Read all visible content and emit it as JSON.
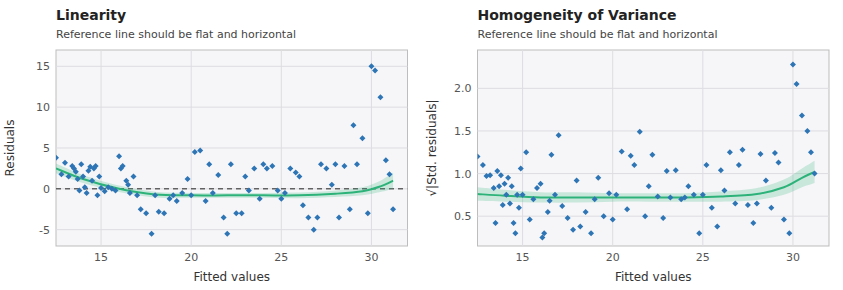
{
  "chart_data": [
    {
      "type": "scatter",
      "title": "Linearity",
      "subtitle": "Reference line should be flat and horizontal",
      "xlabel": "Fitted values",
      "ylabel": "Residuals",
      "xlim": [
        12.5,
        32
      ],
      "xticks": [
        15,
        20,
        25,
        30
      ],
      "ylim": [
        -7,
        17
      ],
      "yticks": [
        -5,
        0,
        5,
        10,
        15
      ],
      "grid": true,
      "reference_line": 0,
      "series": [
        {
          "type": "scatter",
          "marker": "diamond",
          "color": "#2e75b6",
          "x": [
            12.5,
            12.8,
            13.0,
            13.2,
            13.4,
            13.5,
            13.6,
            13.7,
            13.8,
            13.9,
            14.0,
            14.1,
            14.2,
            14.3,
            14.4,
            14.5,
            14.6,
            14.7,
            14.8,
            14.9,
            15.0,
            15.2,
            15.4,
            15.6,
            15.8,
            16.0,
            16.1,
            16.2,
            16.4,
            16.5,
            16.6,
            16.8,
            17.0,
            17.2,
            17.5,
            17.8,
            18.0,
            18.2,
            18.5,
            18.8,
            19.0,
            19.2,
            19.5,
            19.8,
            20.0,
            20.2,
            20.5,
            20.8,
            21.0,
            21.2,
            21.5,
            21.8,
            22.0,
            22.2,
            22.5,
            22.8,
            23.0,
            23.2,
            23.5,
            23.8,
            24.0,
            24.2,
            24.5,
            24.8,
            25.0,
            25.2,
            25.5,
            25.8,
            26.0,
            26.2,
            26.5,
            26.8,
            27.0,
            27.2,
            27.5,
            27.8,
            28.0,
            28.2,
            28.5,
            28.8,
            29.0,
            29.2,
            29.5,
            29.8,
            30.0,
            30.2,
            30.5,
            30.8,
            31.0,
            31.2
          ],
          "values": [
            3.8,
            1.8,
            3.2,
            1.5,
            2.8,
            2.5,
            2.1,
            1.2,
            -0.2,
            3.0,
            1.5,
            0.2,
            -0.5,
            2.2,
            2.7,
            1.0,
            2.5,
            2.8,
            -0.8,
            1.5,
            0.1,
            -0.3,
            0.2,
            0.0,
            -0.2,
            4.0,
            2.5,
            2.8,
            1.0,
            0.5,
            -0.5,
            1.5,
            -0.8,
            -2.5,
            -3.0,
            -5.5,
            -0.8,
            -2.8,
            -3.0,
            -1.2,
            -0.8,
            -1.5,
            -0.5,
            1.2,
            -0.8,
            4.5,
            4.7,
            -1.5,
            3.0,
            -0.5,
            1.7,
            -3.5,
            -5.5,
            3.0,
            -3.0,
            -3.0,
            1.5,
            -0.2,
            2.5,
            -1.2,
            3.0,
            2.5,
            2.8,
            -0.2,
            -1.2,
            -0.5,
            2.5,
            2.0,
            1.5,
            -2.0,
            -3.5,
            -5.0,
            -3.5,
            3.0,
            2.5,
            0.5,
            3.0,
            -3.5,
            2.8,
            -2.5,
            7.8,
            3.0,
            6.2,
            -3.0,
            15.0,
            14.5,
            11.2,
            3.5,
            1.8,
            -2.5
          ]
        },
        {
          "type": "line",
          "color": "#2db37a",
          "x": [
            12.5,
            14.0,
            16.0,
            18.0,
            20.0,
            22.0,
            24.0,
            26.0,
            28.0,
            29.5,
            30.5,
            31.2
          ],
          "values": [
            2.5,
            1.2,
            0.0,
            -0.7,
            -0.8,
            -0.8,
            -0.8,
            -0.8,
            -0.6,
            -0.3,
            0.3,
            1.0
          ],
          "ci": [
            0.6,
            0.5,
            0.4,
            0.35,
            0.3,
            0.3,
            0.3,
            0.35,
            0.4,
            0.5,
            0.7,
            1.0
          ]
        }
      ]
    },
    {
      "type": "scatter",
      "title": "Homogeneity of Variance",
      "subtitle": "Reference line should be flat and horizontal",
      "xlabel": "Fitted values",
      "ylabel": "√|Std. residuals|",
      "xlim": [
        12.5,
        32
      ],
      "xticks": [
        15,
        20,
        25,
        30
      ],
      "ylim": [
        0.15,
        2.45
      ],
      "yticks": [
        0.5,
        {
          "value": 1.0,
          "label": "1.0"
        },
        1.5,
        {
          "value": 2.0,
          "label": "2.0"
        }
      ],
      "grid": true,
      "series": [
        {
          "type": "scatter",
          "marker": "diamond",
          "color": "#2e75b6",
          "x": [
            12.5,
            12.8,
            13.0,
            13.2,
            13.4,
            13.5,
            13.6,
            13.7,
            13.8,
            13.9,
            14.0,
            14.1,
            14.2,
            14.3,
            14.4,
            14.5,
            14.6,
            14.7,
            14.8,
            14.9,
            15.0,
            15.2,
            15.4,
            15.6,
            15.8,
            16.0,
            16.1,
            16.2,
            16.4,
            16.5,
            16.6,
            16.8,
            17.0,
            17.2,
            17.5,
            17.8,
            18.0,
            18.2,
            18.5,
            18.8,
            19.0,
            19.2,
            19.5,
            19.8,
            20.0,
            20.2,
            20.5,
            20.8,
            21.0,
            21.2,
            21.5,
            21.8,
            22.0,
            22.2,
            22.5,
            22.8,
            23.0,
            23.2,
            23.5,
            23.8,
            24.0,
            24.2,
            24.5,
            24.8,
            25.0,
            25.2,
            25.5,
            25.8,
            26.0,
            26.2,
            26.5,
            26.8,
            27.0,
            27.2,
            27.5,
            27.8,
            28.0,
            28.2,
            28.5,
            28.8,
            29.0,
            29.2,
            29.5,
            29.8,
            30.0,
            30.2,
            30.5,
            30.8,
            31.0,
            31.2
          ],
          "values": [
            1.2,
            1.1,
            0.97,
            0.98,
            0.83,
            0.42,
            1.03,
            0.85,
            0.98,
            0.63,
            0.88,
            0.75,
            0.95,
            0.65,
            0.85,
            0.42,
            0.3,
            0.75,
            0.6,
            1.06,
            0.75,
            1.25,
            0.46,
            0.7,
            0.83,
            0.88,
            0.25,
            0.3,
            0.55,
            0.68,
            1.22,
            0.75,
            1.45,
            0.62,
            0.48,
            0.34,
            0.92,
            0.38,
            0.55,
            0.3,
            0.7,
            0.95,
            0.5,
            0.77,
            0.46,
            0.75,
            1.26,
            0.58,
            1.21,
            1.1,
            1.49,
            0.5,
            0.85,
            1.22,
            0.73,
            0.48,
            1.03,
            0.72,
            1.04,
            0.7,
            0.72,
            0.85,
            0.75,
            0.3,
            0.75,
            1.1,
            0.6,
            0.38,
            1.04,
            0.8,
            1.25,
            0.65,
            1.1,
            1.28,
            0.63,
            0.42,
            0.65,
            1.23,
            0.92,
            0.6,
            1.24,
            1.13,
            0.46,
            0.3,
            2.28,
            2.05,
            1.68,
            1.5,
            1.25,
            1.0
          ]
        },
        {
          "type": "line",
          "color": "#2db37a",
          "x": [
            12.5,
            14.0,
            16.0,
            18.0,
            20.0,
            22.0,
            24.0,
            26.0,
            28.0,
            29.5,
            30.5,
            31.2
          ],
          "values": [
            0.76,
            0.74,
            0.72,
            0.72,
            0.72,
            0.72,
            0.72,
            0.73,
            0.76,
            0.84,
            0.95,
            1.02
          ],
          "ci": [
            0.08,
            0.07,
            0.06,
            0.06,
            0.05,
            0.05,
            0.05,
            0.06,
            0.07,
            0.09,
            0.11,
            0.13
          ]
        }
      ]
    }
  ]
}
